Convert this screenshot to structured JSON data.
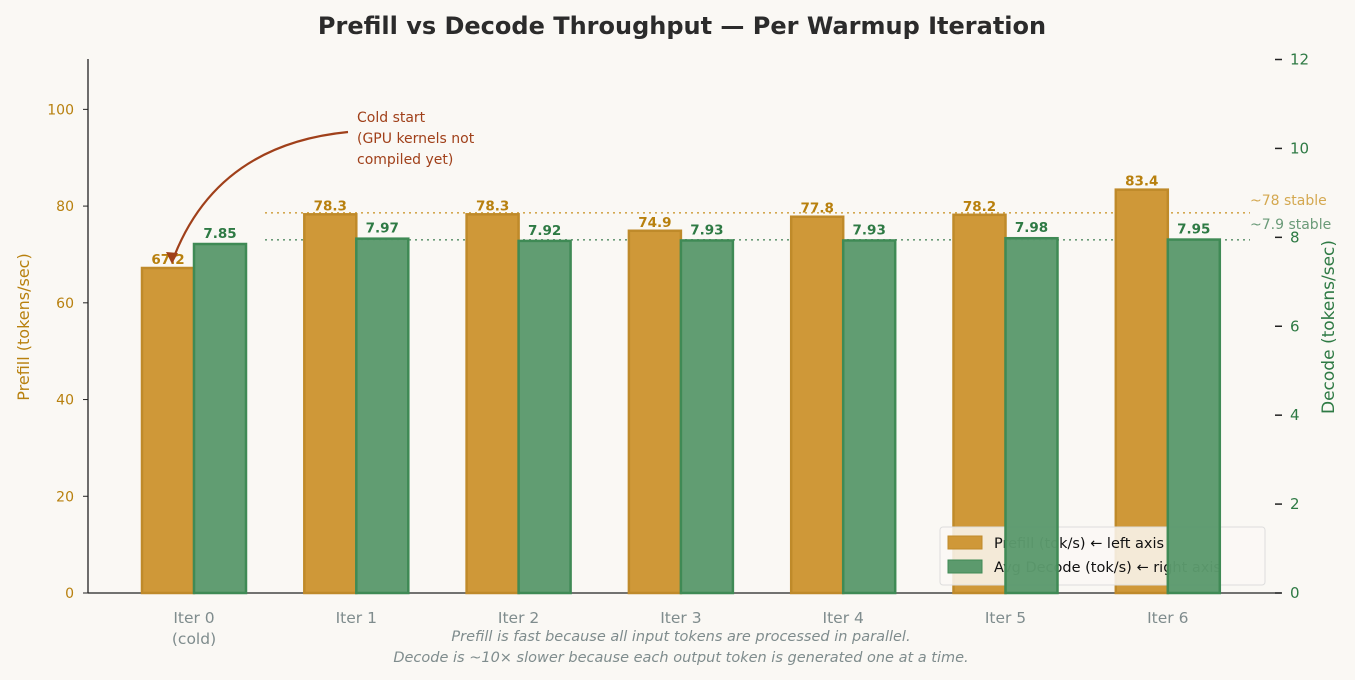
{
  "chart_data": {
    "type": "bar",
    "title": "Prefill vs Decode Throughput — Per Warmup Iteration",
    "categories": [
      "Iter 0\n(cold)",
      "Iter 1",
      "Iter 2",
      "Iter 3",
      "Iter 4",
      "Iter 5",
      "Iter 6"
    ],
    "series": [
      {
        "name": "Prefill (tok/s)  ← left axis",
        "axis": "left",
        "color": "#cf9838",
        "values": [
          67.2,
          78.3,
          78.3,
          74.9,
          77.8,
          78.2,
          83.4
        ],
        "labels": [
          "67.2",
          "78.3",
          "78.3",
          "74.9",
          "77.8",
          "78.2",
          "83.4"
        ]
      },
      {
        "name": "Avg Decode (tok/s)  ← right axis",
        "axis": "right",
        "color": "#5c9a6d",
        "values": [
          7.85,
          7.97,
          7.92,
          7.93,
          7.93,
          7.98,
          7.95
        ],
        "labels": [
          "7.85",
          "7.97",
          "7.92",
          "7.93",
          "7.93",
          "7.98",
          "7.95"
        ]
      }
    ],
    "ylabel_left": "Prefill  (tokens/sec)",
    "ylabel_right": "Decode  (tokens/sec)",
    "ylim_left": [
      0,
      110
    ],
    "ylim_right": [
      0,
      12
    ],
    "yticks_left": [
      0,
      20,
      40,
      60,
      80,
      100
    ],
    "yticks_right": [
      0,
      2,
      4,
      6,
      8,
      10,
      12
    ],
    "reference_lines": [
      {
        "axis": "left",
        "value": 78,
        "label": "~78 stable",
        "color": "#d4a850"
      },
      {
        "axis": "right",
        "value": 7.9,
        "label": "~7.9 stable",
        "color": "#6a9a78"
      }
    ],
    "annotation": {
      "text": [
        "Cold start",
        "(GPU kernels not",
        "compiled yet)"
      ],
      "target": "Iter 0 prefill",
      "color": "#a0401a"
    },
    "footnote": [
      "Prefill is fast because all input tokens are processed in parallel.",
      "Decode is ~10× slower because each output token is generated one at a time."
    ],
    "legend_position": "bottom-right",
    "grid": false
  }
}
